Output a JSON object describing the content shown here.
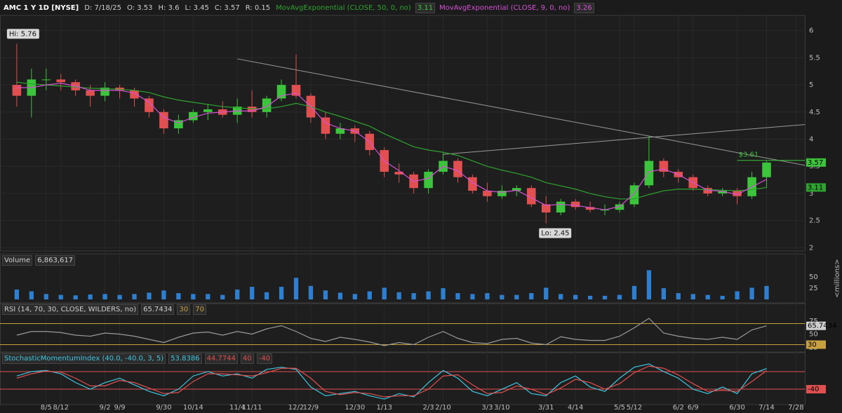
{
  "header": {
    "symbol": "AMC 1 Y 1D [NYSE]",
    "fields": [
      "D: 7/18/25",
      "O: 3.53",
      "H: 3.6",
      "L: 3.45",
      "C: 3.57",
      "R: 0.15"
    ]
  },
  "chart_data": [
    {
      "type": "candlestick",
      "up_color": "#3cc43c",
      "down_color": "#e05050",
      "x": [
        0,
        1,
        2,
        3,
        4,
        5,
        6,
        7,
        8,
        9,
        10,
        11,
        12,
        13,
        14,
        15,
        16,
        17,
        18,
        19,
        20,
        21,
        22,
        23,
        24,
        25,
        26,
        27,
        28,
        29,
        30,
        31,
        32,
        33,
        34,
        35,
        36,
        37,
        38,
        39,
        40,
        41,
        42,
        43,
        44,
        45,
        46,
        47,
        48,
        49,
        50,
        51
      ],
      "open": [
        5.0,
        4.8,
        5.1,
        5.1,
        5.05,
        4.9,
        4.8,
        4.95,
        4.9,
        4.75,
        4.5,
        4.2,
        4.35,
        4.5,
        4.55,
        4.45,
        4.6,
        4.5,
        4.75,
        5.0,
        4.8,
        4.4,
        4.1,
        4.2,
        4.1,
        3.8,
        3.4,
        3.35,
        3.1,
        3.4,
        3.6,
        3.3,
        3.05,
        2.95,
        3.05,
        3.1,
        2.8,
        2.65,
        2.85,
        2.75,
        2.7,
        2.7,
        2.8,
        3.15,
        3.6,
        3.4,
        3.3,
        3.1,
        3.0,
        3.05,
        2.95,
        3.3
      ],
      "high": [
        5.76,
        5.3,
        5.3,
        5.2,
        5.1,
        5.0,
        5.05,
        5.0,
        4.95,
        4.8,
        4.55,
        4.45,
        4.55,
        4.65,
        4.7,
        4.75,
        4.9,
        4.8,
        5.1,
        5.56,
        4.85,
        4.5,
        4.3,
        4.25,
        4.15,
        3.85,
        3.55,
        3.4,
        3.45,
        3.75,
        3.65,
        3.35,
        3.2,
        3.15,
        3.15,
        3.15,
        2.95,
        2.9,
        2.9,
        2.85,
        2.8,
        2.85,
        3.2,
        4.05,
        3.65,
        3.45,
        3.35,
        3.15,
        3.1,
        3.1,
        3.4,
        3.6
      ],
      "low": [
        4.6,
        4.4,
        4.9,
        4.9,
        4.8,
        4.6,
        4.7,
        4.75,
        4.6,
        4.4,
        4.1,
        4.1,
        4.3,
        4.35,
        4.4,
        4.3,
        4.4,
        4.4,
        4.7,
        4.75,
        4.3,
        4.0,
        4.0,
        3.95,
        3.7,
        3.3,
        3.2,
        3.0,
        3.0,
        3.35,
        3.2,
        3.0,
        2.85,
        2.9,
        2.95,
        2.75,
        2.45,
        2.6,
        2.7,
        2.65,
        2.6,
        2.65,
        2.75,
        3.1,
        3.3,
        3.2,
        3.05,
        2.95,
        2.95,
        2.8,
        2.9,
        3.1
      ],
      "close": [
        4.8,
        5.1,
        5.1,
        5.05,
        4.9,
        4.8,
        4.95,
        4.9,
        4.75,
        4.5,
        4.2,
        4.35,
        4.5,
        4.55,
        4.45,
        4.6,
        4.5,
        4.75,
        5.0,
        4.8,
        4.4,
        4.1,
        4.2,
        4.1,
        3.8,
        3.4,
        3.35,
        3.1,
        3.4,
        3.6,
        3.3,
        3.05,
        2.95,
        3.05,
        3.1,
        2.8,
        2.65,
        2.85,
        2.75,
        2.7,
        2.7,
        2.8,
        3.15,
        3.6,
        3.4,
        3.3,
        3.1,
        3.0,
        3.05,
        2.95,
        3.3,
        3.57
      ],
      "series": [
        {
          "name": "MovAvgExponential (CLOSE, 50, 0, no)",
          "color": "#2fa32f",
          "values": [
            5.05,
            5.02,
            5.0,
            4.98,
            4.96,
            4.94,
            4.93,
            4.92,
            4.9,
            4.86,
            4.78,
            4.72,
            4.68,
            4.64,
            4.6,
            4.58,
            4.56,
            4.56,
            4.6,
            4.66,
            4.6,
            4.5,
            4.42,
            4.33,
            4.24,
            4.1,
            3.98,
            3.86,
            3.8,
            3.76,
            3.7,
            3.6,
            3.5,
            3.43,
            3.37,
            3.3,
            3.2,
            3.14,
            3.08,
            3.0,
            2.94,
            2.9,
            2.9,
            2.98,
            3.05,
            3.08,
            3.08,
            3.07,
            3.06,
            3.05,
            3.07,
            3.11
          ]
        },
        {
          "name": "MovAvgExponential (CLOSE, 9, 0, no)",
          "color": "#d552d5",
          "values": [
            4.95,
            4.95,
            5.0,
            5.03,
            4.98,
            4.9,
            4.9,
            4.9,
            4.85,
            4.68,
            4.4,
            4.3,
            4.4,
            4.48,
            4.5,
            4.52,
            4.52,
            4.6,
            4.8,
            4.85,
            4.6,
            4.3,
            4.2,
            4.15,
            3.95,
            3.6,
            3.42,
            3.22,
            3.28,
            3.5,
            3.42,
            3.2,
            3.05,
            3.02,
            3.06,
            2.92,
            2.78,
            2.8,
            2.78,
            2.74,
            2.7,
            2.76,
            3.0,
            3.4,
            3.45,
            3.35,
            3.2,
            3.06,
            3.04,
            2.98,
            3.12,
            3.26
          ]
        }
      ],
      "hi_label": "Hi: 5.76",
      "lo_label": "Lo: 2.45",
      "price_line": {
        "value": 3.61,
        "label": "$3.61",
        "x": [
          49,
          53.6
        ],
        "color": "#3cc43c"
      },
      "trendlines": [
        {
          "x": [
            15,
            53.6
          ],
          "y": [
            5.48,
            3.52
          ]
        },
        {
          "x": [
            29,
            53.6
          ],
          "y": [
            3.72,
            4.27
          ]
        }
      ],
      "xlim": [
        -1.14,
        53.6
      ],
      "ylim": [
        1.94,
        6.28
      ],
      "yticks": [
        2,
        2.5,
        3,
        3.5,
        4,
        4.5,
        5,
        5.5,
        6
      ],
      "xticks": [
        {
          "value": 2,
          "label": "8/5"
        },
        {
          "value": 3,
          "label": "8/12"
        },
        {
          "value": 6,
          "label": "9/2"
        },
        {
          "value": 7,
          "label": "9/9"
        },
        {
          "value": 10,
          "label": "9/30"
        },
        {
          "value": 12,
          "label": "10/14"
        },
        {
          "value": 15,
          "label": "11/4"
        },
        {
          "value": 16,
          "label": "11/11"
        },
        {
          "value": 19,
          "label": "12/2"
        },
        {
          "value": 20,
          "label": "12/9"
        },
        {
          "value": 23,
          "label": "12/30"
        },
        {
          "value": 25,
          "label": "1/13"
        },
        {
          "value": 28,
          "label": "2/3"
        },
        {
          "value": 29,
          "label": "2/10"
        },
        {
          "value": 32,
          "label": "3/3"
        },
        {
          "value": 33,
          "label": "3/10"
        },
        {
          "value": 36,
          "label": "3/31"
        },
        {
          "value": 38,
          "label": "4/14"
        },
        {
          "value": 41,
          "label": "5/5"
        },
        {
          "value": 42,
          "label": "5/12"
        },
        {
          "value": 45,
          "label": "6/2"
        },
        {
          "value": 46,
          "label": "6/9"
        },
        {
          "value": 49,
          "label": "6/30"
        },
        {
          "value": 51,
          "label": "7/14"
        },
        {
          "value": 53,
          "label": "7/28"
        }
      ]
    },
    {
      "type": "bar",
      "title": "Volume",
      "value_label": "6,863,617",
      "unit": "<millions>",
      "color": "#2f7fd0",
      "values": [
        22,
        18,
        12,
        10,
        9,
        11,
        12,
        10,
        12,
        15,
        20,
        14,
        12,
        12,
        10,
        22,
        28,
        16,
        28,
        48,
        30,
        20,
        15,
        12,
        18,
        26,
        16,
        14,
        18,
        25,
        14,
        12,
        14,
        10,
        10,
        14,
        26,
        12,
        10,
        8,
        8,
        10,
        30,
        65,
        25,
        14,
        12,
        10,
        8,
        18,
        26,
        30
      ],
      "ylim": [
        -7.8,
        101.5
      ],
      "yticks": [
        25,
        50
      ]
    },
    {
      "type": "line",
      "title": "RSI (14, 70, 30, CLOSE, WILDERS, no)",
      "series": [
        {
          "color": "#9a9a9a",
          "values": [
            48,
            55,
            55,
            53,
            48,
            46,
            52,
            50,
            46,
            40,
            34,
            44,
            52,
            54,
            48,
            55,
            50,
            60,
            66,
            55,
            42,
            36,
            44,
            40,
            35,
            28,
            34,
            30,
            44,
            55,
            42,
            34,
            32,
            40,
            42,
            33,
            30,
            45,
            40,
            38,
            38,
            46,
            62,
            80,
            52,
            46,
            42,
            40,
            44,
            40,
            58,
            65.7434
          ]
        }
      ],
      "bands": [
        {
          "value": 30,
          "color": "#c8a040"
        },
        {
          "value": 70,
          "color": "#c8a040"
        }
      ],
      "ylim": [
        16,
        108
      ],
      "yticks": [
        25,
        50,
        75
      ]
    },
    {
      "type": "line",
      "title": "StochasticMomentumIndex (40.0, -40.0, 3, 5)",
      "series": [
        {
          "color": "#3ec6e0",
          "values": [
            20,
            40,
            45,
            30,
            -10,
            -40,
            -10,
            10,
            -20,
            -50,
            -70,
            -40,
            20,
            40,
            20,
            30,
            10,
            50,
            60,
            50,
            -30,
            -70,
            -60,
            -50,
            -70,
            -85,
            -60,
            -75,
            -10,
            45,
            10,
            -50,
            -70,
            -40,
            -10,
            -60,
            -70,
            -10,
            20,
            -30,
            -50,
            10,
            60,
            75,
            40,
            10,
            -40,
            -60,
            -30,
            -60,
            30,
            53.8386
          ]
        },
        {
          "color": "#e05050",
          "values": [
            10,
            30,
            42,
            38,
            10,
            -25,
            -25,
            0,
            -10,
            -35,
            -60,
            -55,
            -5,
            30,
            30,
            25,
            20,
            35,
            55,
            55,
            10,
            -50,
            -65,
            -55,
            -60,
            -75,
            -70,
            -70,
            -40,
            20,
            25,
            -20,
            -60,
            -55,
            -25,
            -40,
            -65,
            -35,
            5,
            -10,
            -40,
            -15,
            35,
            65,
            55,
            25,
            -15,
            -50,
            -45,
            -50,
            -5,
            44.7744
          ]
        }
      ],
      "bands": [
        {
          "value": 40,
          "color": "#e05050"
        },
        {
          "value": -40,
          "color": "#e05050"
        }
      ],
      "ylim": [
        -110,
        126
      ]
    }
  ]
}
